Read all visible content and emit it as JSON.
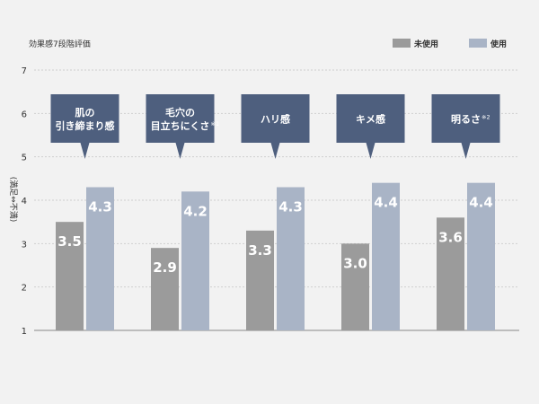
{
  "chart_data": {
    "type": "bar",
    "title": "効果感7段階評価",
    "ylabel": "(満足⇔不満)",
    "ylim": [
      1,
      7
    ],
    "yticks": [
      "1",
      "2",
      "3",
      "4",
      "5",
      "6",
      "7"
    ],
    "grid": true,
    "legend_position": "top-right",
    "categories": [
      "肌の引き締まり感",
      "毛穴の目立ちにくさ※1",
      "ハリ感",
      "キメ感",
      "明るさ※2"
    ],
    "callouts": [
      {
        "lines": [
          "肌の",
          "引き締まり感"
        ]
      },
      {
        "lines": [
          "毛穴の",
          "目立ちにくさ"
        ],
        "note": "※1"
      },
      {
        "lines": [
          "ハリ感"
        ]
      },
      {
        "lines": [
          "キメ感"
        ]
      },
      {
        "lines": [
          "明るさ"
        ],
        "note": "※2"
      }
    ],
    "series": [
      {
        "name": "未使用",
        "values": [
          3.5,
          2.9,
          3.3,
          3.0,
          3.6
        ],
        "labels": [
          "3.5",
          "2.9",
          "3.3",
          "3.0",
          "3.6"
        ],
        "color": "#9b9b9b"
      },
      {
        "name": "使用",
        "values": [
          4.3,
          4.2,
          4.3,
          4.4,
          4.4
        ],
        "labels": [
          "4.3",
          "4.2",
          "4.3",
          "4.4",
          "4.4"
        ],
        "color": "#a9b4c6"
      }
    ],
    "callout_color": "#4e5f7e",
    "text_color": "#333333"
  }
}
